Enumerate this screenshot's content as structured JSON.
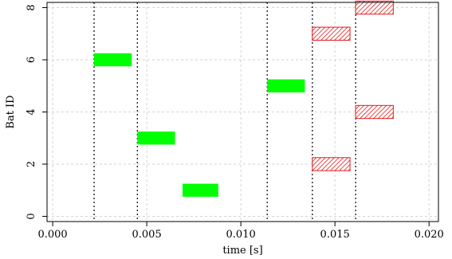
{
  "chart_data": {
    "type": "bar",
    "orientation": "horizontal-intervals",
    "title": "",
    "xlabel": "time [s]",
    "ylabel": "Bat ID",
    "xlim": [
      -0.0003,
      0.0205
    ],
    "ylim": [
      -0.2,
      8.2
    ],
    "grid": true,
    "x_ticks": [
      0.0,
      0.005,
      0.01,
      0.015,
      0.02
    ],
    "x_tick_labels": [
      "0.000",
      "0.005",
      "0.010",
      "0.015",
      "0.020"
    ],
    "y_ticks": [
      0,
      2,
      4,
      6,
      8
    ],
    "y_tick_labels": [
      "0",
      "2",
      "4",
      "6",
      "8"
    ],
    "vlines": [
      0.0022,
      0.0045,
      0.0114,
      0.0138,
      0.0161
    ],
    "series": [
      {
        "color": "#00ff00",
        "style": "solid",
        "intervals": [
          {
            "bat": 6,
            "start": 0.0022,
            "end": 0.0042
          },
          {
            "bat": 3,
            "start": 0.0045,
            "end": 0.0065
          },
          {
            "bat": 1,
            "start": 0.0069,
            "end": 0.0088
          },
          {
            "bat": 5,
            "start": 0.0114,
            "end": 0.0134
          }
        ]
      },
      {
        "color": "#e31a1c",
        "style": "hatched",
        "intervals": [
          {
            "bat": 7,
            "start": 0.0138,
            "end": 0.0158
          },
          {
            "bat": 2,
            "start": 0.0138,
            "end": 0.0158
          },
          {
            "bat": 8,
            "start": 0.0161,
            "end": 0.0181
          },
          {
            "bat": 4,
            "start": 0.0161,
            "end": 0.0181
          }
        ]
      }
    ]
  }
}
